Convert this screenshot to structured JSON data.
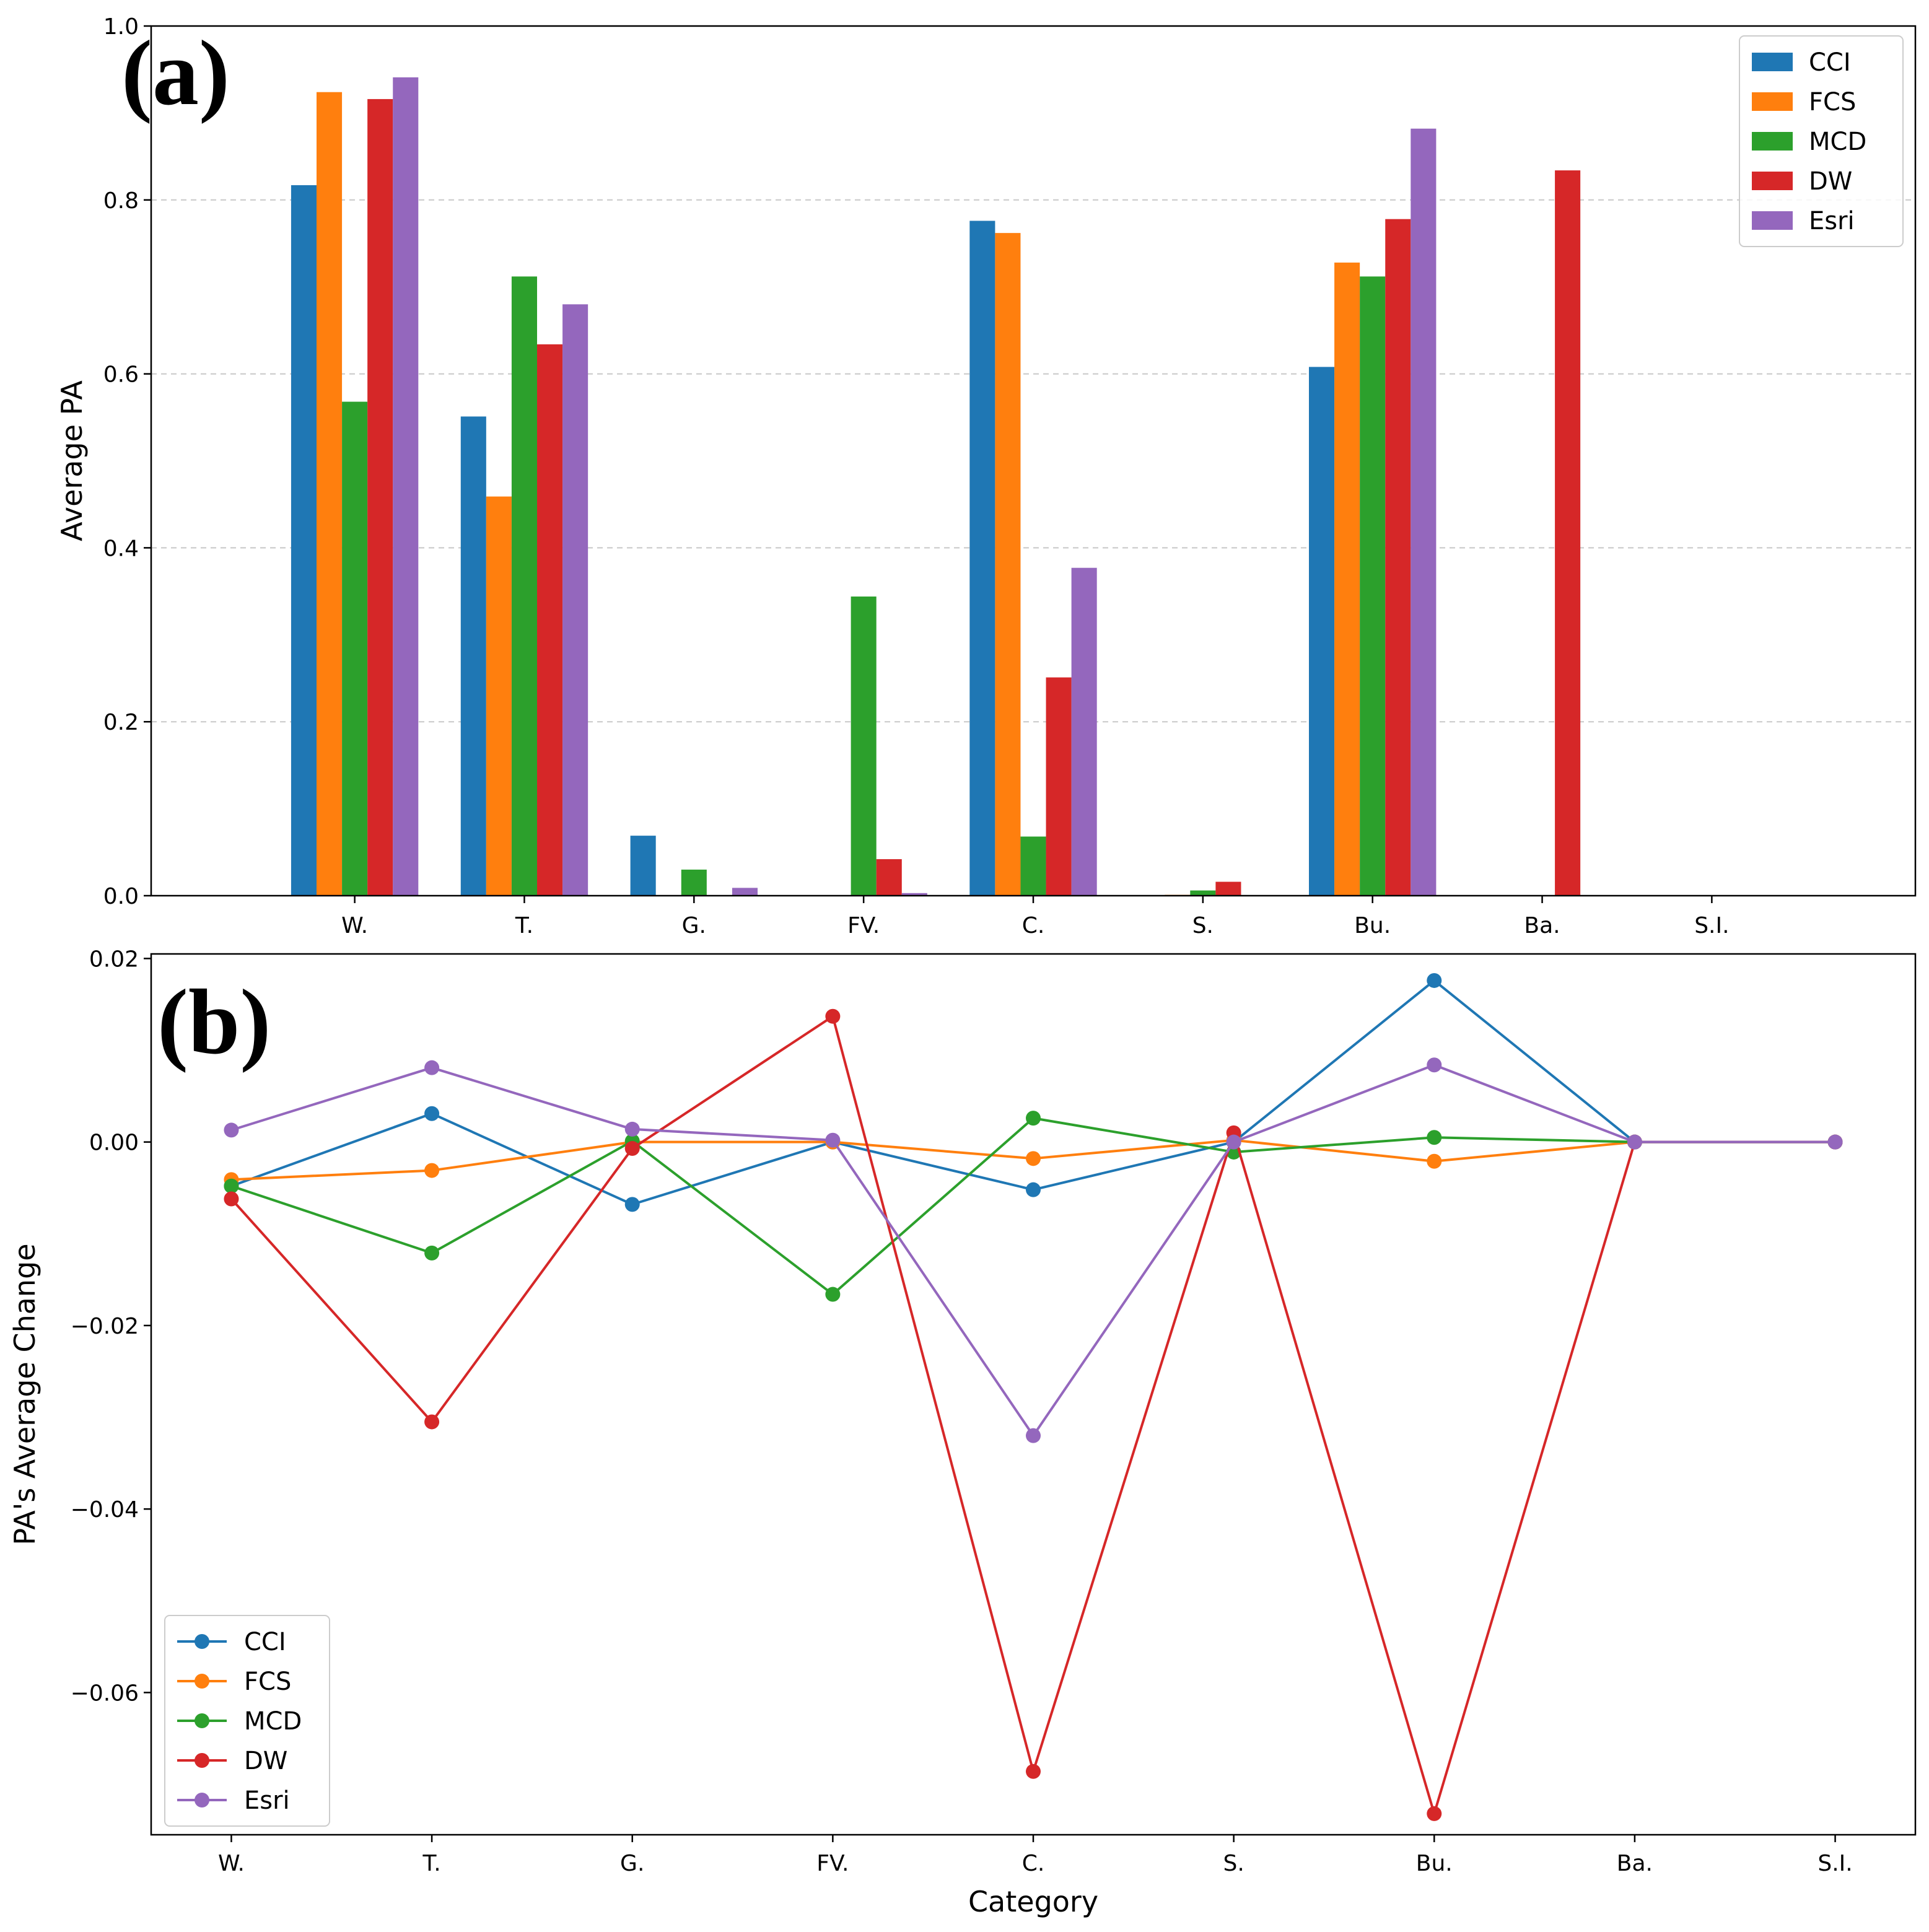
{
  "chart_data": [
    {
      "type": "bar",
      "panel_label": "(a)",
      "categories": [
        "W.",
        "T.",
        "G.",
        "FV.",
        "C.",
        "S.",
        "Bu.",
        "Ba.",
        "S.I."
      ],
      "xlabel": "",
      "ylabel": "Average PA",
      "ylim": [
        0,
        1.0
      ],
      "yticks": [
        "0.0",
        "0.2",
        "0.4",
        "0.6",
        "0.8",
        "1.0"
      ],
      "grid": "y-dashed",
      "legend_position": "top-right",
      "series": [
        {
          "name": "CCI",
          "color": "#1f77b4",
          "values": [
            0.817,
            0.551,
            0.069,
            0.0,
            0.776,
            0.0,
            0.608,
            0.0,
            0.0
          ]
        },
        {
          "name": "FCS",
          "color": "#ff7f0e",
          "values": [
            0.924,
            0.459,
            0.0,
            0.0,
            0.762,
            0.001,
            0.728,
            0.0,
            0.0
          ]
        },
        {
          "name": "MCD",
          "color": "#2ca02c",
          "values": [
            0.568,
            0.712,
            0.03,
            0.344,
            0.068,
            0.006,
            0.712,
            0.0,
            0.0
          ]
        },
        {
          "name": "DW",
          "color": "#d62728",
          "values": [
            0.916,
            0.634,
            0.0,
            0.042,
            0.251,
            0.016,
            0.778,
            0.834,
            0.0
          ]
        },
        {
          "name": "Esri",
          "color": "#9467bd",
          "values": [
            0.941,
            0.68,
            0.009,
            0.003,
            0.377,
            0.0,
            0.882,
            0.0,
            0.0
          ]
        }
      ]
    },
    {
      "type": "line",
      "panel_label": "(b)",
      "categories": [
        "W.",
        "T.",
        "G.",
        "FV.",
        "C.",
        "S.",
        "Bu.",
        "Ba.",
        "S.I."
      ],
      "xlabel": "Category",
      "ylabel": "PA's Average Change",
      "ylim": [
        -0.0755,
        0.0205
      ],
      "yticks": [
        "0.02",
        "0.00",
        "−0.02",
        "−0.04",
        "−0.06"
      ],
      "ytick_values": [
        0.02,
        0.0,
        -0.02,
        -0.04,
        -0.06
      ],
      "grid": "none",
      "legend_position": "lower-left",
      "series": [
        {
          "name": "CCI",
          "color": "#1f77b4",
          "values": [
            -0.0048,
            0.0031,
            -0.0068,
            0.0,
            -0.0052,
            0.0,
            0.0176,
            0.0,
            0.0
          ]
        },
        {
          "name": "FCS",
          "color": "#ff7f0e",
          "values": [
            -0.0041,
            -0.0031,
            0.0,
            0.0,
            -0.0018,
            0.0002,
            -0.0021,
            0.0,
            0.0
          ]
        },
        {
          "name": "MCD",
          "color": "#2ca02c",
          "values": [
            -0.0048,
            -0.0121,
            0.0001,
            -0.0166,
            0.0026,
            -0.0011,
            0.0005,
            0.0,
            0.0
          ]
        },
        {
          "name": "DW",
          "color": "#d62728",
          "values": [
            -0.0062,
            -0.0305,
            -0.0007,
            0.0137,
            -0.0686,
            0.001,
            -0.0732,
            0.0,
            0.0
          ]
        },
        {
          "name": "Esri",
          "color": "#9467bd",
          "values": [
            0.0013,
            0.0081,
            0.0014,
            0.0002,
            -0.032,
            0.0,
            0.0084,
            0.0,
            0.0
          ]
        }
      ]
    }
  ]
}
